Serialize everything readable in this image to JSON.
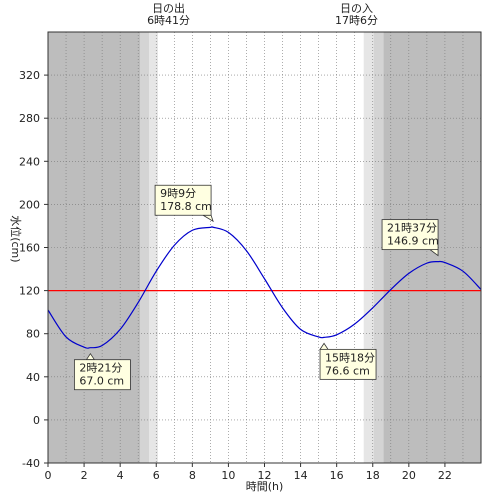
{
  "chart_data": {
    "type": "line",
    "xlabel": "時間(h)",
    "ylabel": "水位(cm)",
    "xlim": [
      0,
      24
    ],
    "ylim": [
      -40,
      360
    ],
    "x_ticks": [
      0,
      2,
      4,
      6,
      8,
      10,
      12,
      14,
      16,
      18,
      20,
      22
    ],
    "y_ticks": [
      -40,
      0,
      40,
      80,
      120,
      160,
      200,
      240,
      280,
      320
    ],
    "grid": true,
    "reference_line": {
      "value": 120,
      "color": "#ff0000"
    },
    "sunrise": {
      "label": "日の出",
      "time": "6時41分",
      "hour": 6.683
    },
    "sunset": {
      "label": "日の入",
      "time": "17時6分",
      "hour": 17.1
    },
    "twilight": {
      "morning": [
        5.1,
        6.1
      ],
      "evening": [
        17.5,
        18.6
      ]
    },
    "colors": {
      "night": "#bdbdbd",
      "twilight_outer": "#d4d4d4",
      "twilight_inner": "#e6e6e6",
      "day": "#ffffff",
      "curve": "#0000cc",
      "reference": "#ff0000",
      "callout_fill": "#ffffe1"
    },
    "series": [
      {
        "color": "#0000cc",
        "x": [
          0,
          1,
          2,
          2.35,
          3,
          4,
          5,
          6,
          7,
          8,
          9,
          9.15,
          10,
          11,
          12,
          13,
          14,
          15,
          15.3,
          16,
          17,
          18,
          19,
          20,
          21,
          21.62,
          22,
          23,
          24
        ],
        "y": [
          102,
          77,
          67.5,
          67,
          69,
          84,
          109,
          138,
          162,
          176,
          178.7,
          178.8,
          174,
          157,
          131,
          104,
          84,
          77,
          76.6,
          79,
          89,
          104,
          121,
          136,
          145.5,
          146.9,
          146,
          138,
          121
        ]
      }
    ],
    "annotations": [
      {
        "time": "2時21分",
        "value": "67.0 cm",
        "x": 2.35,
        "y": 67.0
      },
      {
        "time": "9時9分",
        "value": "178.8 cm",
        "x": 9.15,
        "y": 178.8
      },
      {
        "time": "15時18分",
        "value": "76.6 cm",
        "x": 15.3,
        "y": 76.6
      },
      {
        "time": "21時37分",
        "value": "146.9 cm",
        "x": 21.62,
        "y": 146.9
      }
    ]
  }
}
